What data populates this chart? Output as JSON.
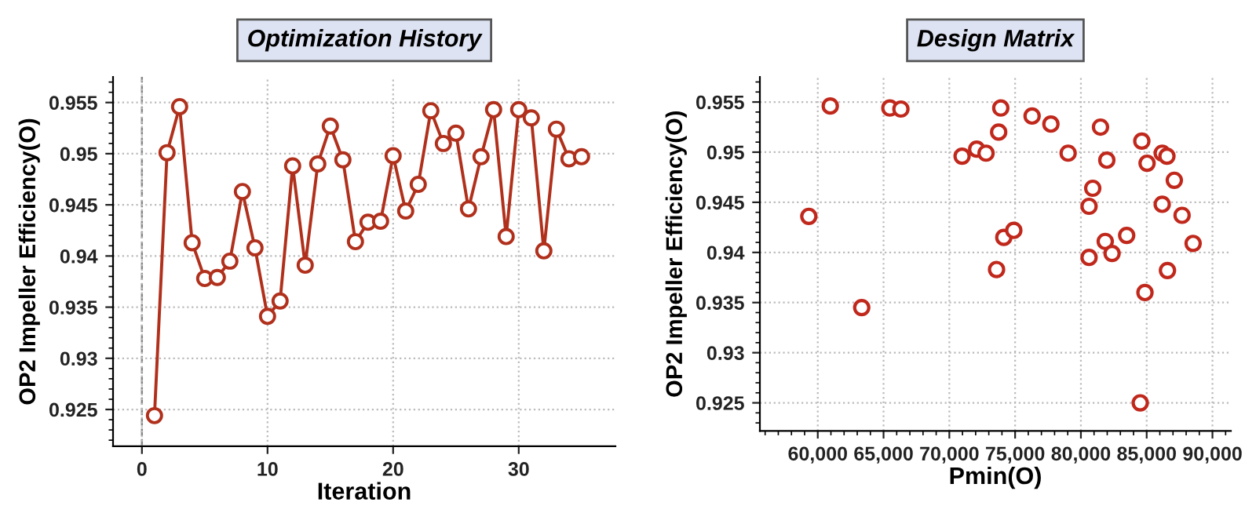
{
  "chart_data": [
    {
      "type": "line",
      "title": "Optimization History",
      "xlabel": "Iteration",
      "ylabel": "OP2 Impeller Efficiency(O)",
      "x": [
        1,
        2,
        3,
        4,
        5,
        6,
        7,
        8,
        9,
        10,
        11,
        12,
        13,
        14,
        15,
        16,
        17,
        18,
        19,
        20,
        21,
        22,
        23,
        24,
        25,
        26,
        27,
        28,
        29,
        30,
        31,
        32,
        33,
        34,
        35
      ],
      "series": [
        {
          "color": "#b0301c",
          "values": [
            0.9244,
            0.9501,
            0.9546,
            0.9413,
            0.9378,
            0.9379,
            0.9395,
            0.9463,
            0.9408,
            0.9341,
            0.9356,
            0.9488,
            0.9391,
            0.949,
            0.9527,
            0.9494,
            0.9414,
            0.9433,
            0.9434,
            0.9498,
            0.9444,
            0.947,
            0.9542,
            0.951,
            0.952,
            0.9446,
            0.9497,
            0.9543,
            0.9419,
            0.9543,
            0.9535,
            0.9405,
            0.9524,
            0.9495,
            0.9497
          ]
        }
      ],
      "xlim": [
        -2.3,
        37.7
      ],
      "ylim": [
        0.9214,
        0.9575
      ],
      "xticks": [
        0,
        10,
        20,
        30
      ],
      "yticks": [
        0.925,
        0.93,
        0.935,
        0.94,
        0.945,
        0.95,
        0.955
      ],
      "grid": true,
      "marker": "circle",
      "line_style": "solid",
      "ref_lines": [
        {
          "axis": "x",
          "value": 0,
          "color": "#888888",
          "line_style": "dashed"
        }
      ]
    },
    {
      "type": "scatter",
      "title": "Design Matrix",
      "xlabel": "Pmin(O)",
      "ylabel": "OP2 Impeller Efficiency(O)",
      "x": [
        59320,
        60950,
        65480,
        66320,
        63340,
        70970,
        72080,
        72790,
        73750,
        73910,
        73590,
        74140,
        74900,
        76290,
        77720,
        79030,
        80900,
        80620,
        80620,
        81490,
        81970,
        81850,
        82370,
        83480,
        84630,
        85030,
        84870,
        84510,
        86180,
        86540,
        87100,
        86180,
        86580,
        87690,
        88530
      ],
      "series": [
        {
          "color": "#c0281c",
          "values": [
            0.9436,
            0.9546,
            0.9544,
            0.9543,
            0.9345,
            0.9496,
            0.9503,
            0.9499,
            0.952,
            0.9544,
            0.9383,
            0.9415,
            0.9422,
            0.9536,
            0.9528,
            0.9499,
            0.9464,
            0.9446,
            0.9395,
            0.9525,
            0.9492,
            0.9411,
            0.9399,
            0.9417,
            0.9511,
            0.9489,
            0.936,
            0.925,
            0.9499,
            0.9496,
            0.9472,
            0.9448,
            0.9382,
            0.9437,
            0.9409
          ]
        }
      ],
      "xlim": [
        55600,
        91400
      ],
      "ylim": [
        0.9222,
        0.9575
      ],
      "xticks": [
        {
          "value": 60000,
          "label": "60,000"
        },
        {
          "value": 65000,
          "label": "65,000"
        },
        {
          "value": 70000,
          "label": "70,000"
        },
        {
          "value": 75000,
          "label": "75,000"
        },
        {
          "value": 80000,
          "label": "80,000"
        },
        {
          "value": 85000,
          "label": "85,000"
        },
        {
          "value": 90000,
          "label": "90,000"
        }
      ],
      "yticks": [
        0.925,
        0.93,
        0.935,
        0.94,
        0.945,
        0.95,
        0.955
      ],
      "grid": true,
      "marker": "circle"
    }
  ]
}
